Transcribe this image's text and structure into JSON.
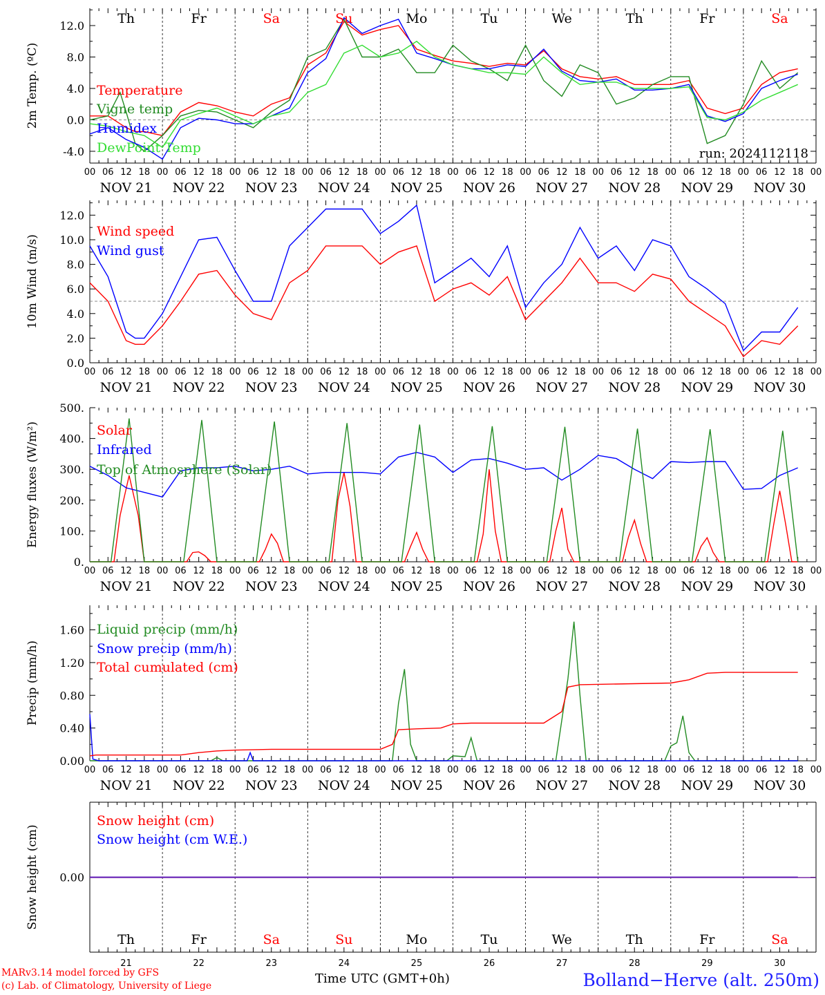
{
  "weekdays": [
    {
      "name": "Th",
      "color": "#000000"
    },
    {
      "name": "Fr",
      "color": "#000000"
    },
    {
      "name": "Sa",
      "color": "#ff0000"
    },
    {
      "name": "Su",
      "color": "#ff0000"
    },
    {
      "name": "Mo",
      "color": "#000000"
    },
    {
      "name": "Tu",
      "color": "#000000"
    },
    {
      "name": "We",
      "color": "#000000"
    },
    {
      "name": "Th",
      "color": "#000000"
    },
    {
      "name": "Fr",
      "color": "#000000"
    },
    {
      "name": "Sa",
      "color": "#ff0000"
    }
  ],
  "dates": [
    "NOV 21",
    "NOV 22",
    "NOV 23",
    "NOV 24",
    "NOV 25",
    "NOV 26",
    "NOV 27",
    "NOV 28",
    "NOV 29",
    "NOV 30"
  ],
  "day_numbers": [
    "21",
    "22",
    "23",
    "24",
    "25",
    "26",
    "27",
    "28",
    "29",
    "30"
  ],
  "hour_ticks": [
    "00",
    "06",
    "12",
    "18"
  ],
  "final_tick": "00",
  "footer": {
    "model": "MARv3.14 model forced by GFS",
    "lab": "(c) Lab. of Climatology, University of Liege",
    "xlabel": "Time UTC (GMT+0h)",
    "station": "Bolland−Herve (alt. 250m)"
  },
  "chart_data": [
    {
      "type": "line",
      "ylabel": "2m Temp. (ºC)",
      "ylim": [
        -5.5,
        14.2
      ],
      "yticks": [
        "-4.0",
        "0.0",
        "4.0",
        "8.0",
        "12.0"
      ],
      "yticks_values": [
        -4,
        0,
        4,
        8,
        12
      ],
      "ref_line": 0,
      "run_label": "run: 2024112118",
      "x_unit": "hours since NOV 21 00 UTC",
      "series": [
        {
          "name": "Temperature",
          "color": "#ff0000",
          "x": [
            0,
            6,
            12,
            15,
            18,
            24,
            30,
            36,
            42,
            48,
            54,
            60,
            66,
            72,
            78,
            84,
            90,
            96,
            102,
            108,
            114,
            120,
            126,
            132,
            138,
            144,
            150,
            156,
            162,
            168,
            174,
            180,
            186,
            192,
            198,
            204,
            210,
            216,
            222,
            228,
            234
          ],
          "y": [
            0.5,
            0.5,
            -1.0,
            -1.5,
            -1.5,
            -2.0,
            1.0,
            2.2,
            1.8,
            1.0,
            0.5,
            2.0,
            2.8,
            7.0,
            8.5,
            12.5,
            10.8,
            11.5,
            12.0,
            9.0,
            8.2,
            7.5,
            7.2,
            6.8,
            7.2,
            7.0,
            8.8,
            6.5,
            5.5,
            5.2,
            5.5,
            4.5,
            4.5,
            4.5,
            5.0,
            1.5,
            0.8,
            1.5,
            4.5,
            6.0,
            6.5
          ]
        },
        {
          "name": "Vigne temp",
          "color": "#228b22",
          "x": [
            0,
            6,
            10,
            12,
            15,
            18,
            24,
            30,
            36,
            42,
            48,
            54,
            60,
            66,
            72,
            78,
            84,
            90,
            96,
            102,
            108,
            114,
            120,
            126,
            132,
            138,
            144,
            150,
            156,
            162,
            168,
            174,
            180,
            186,
            192,
            198,
            204,
            210,
            216,
            222,
            228,
            234
          ],
          "y": [
            0.0,
            0.5,
            3.5,
            1.0,
            -3.0,
            -4.0,
            -2.0,
            0.5,
            1.2,
            1.0,
            0.0,
            -1.0,
            1.0,
            2.5,
            8.0,
            9.0,
            12.8,
            8.0,
            8.0,
            9.0,
            6.0,
            6.0,
            9.5,
            7.5,
            6.5,
            5.0,
            9.5,
            5.0,
            3.0,
            7.0,
            6.0,
            2.0,
            2.8,
            4.5,
            5.5,
            5.5,
            -3.0,
            -2.0,
            2.0,
            7.5,
            4.0,
            6.0
          ]
        },
        {
          "name": "Humidex",
          "color": "#0000ff",
          "x": [
            0,
            6,
            12,
            15,
            18,
            24,
            30,
            36,
            42,
            48,
            54,
            60,
            66,
            72,
            78,
            84,
            90,
            96,
            102,
            108,
            114,
            120,
            126,
            132,
            138,
            144,
            150,
            156,
            162,
            168,
            174,
            180,
            186,
            192,
            198,
            204,
            210,
            216,
            222,
            228,
            234
          ],
          "y": [
            -1.8,
            -1.0,
            -2.5,
            -3.0,
            -3.5,
            -5.0,
            -1.0,
            0.2,
            0.0,
            -0.5,
            -0.5,
            0.5,
            1.5,
            6.0,
            7.8,
            13.0,
            11.0,
            12.0,
            12.8,
            8.5,
            7.8,
            7.0,
            6.5,
            6.5,
            7.0,
            6.8,
            9.0,
            6.2,
            5.0,
            4.8,
            5.2,
            3.8,
            3.8,
            4.0,
            4.5,
            0.5,
            -0.2,
            0.8,
            4.0,
            5.0,
            5.8
          ]
        },
        {
          "name": "DewPoint Temp",
          "color": "#33dd33",
          "x": [
            0,
            6,
            12,
            18,
            24,
            30,
            36,
            42,
            48,
            54,
            60,
            66,
            72,
            78,
            84,
            90,
            96,
            102,
            108,
            114,
            120,
            126,
            132,
            138,
            144,
            150,
            156,
            162,
            168,
            174,
            180,
            186,
            192,
            198,
            204,
            210,
            216,
            222,
            228,
            234
          ],
          "y": [
            -0.5,
            -0.8,
            -1.5,
            -2.0,
            -3.5,
            0.0,
            0.8,
            1.5,
            0.5,
            -0.5,
            0.5,
            1.0,
            3.5,
            4.5,
            8.5,
            9.5,
            8.0,
            8.5,
            10.0,
            8.0,
            7.0,
            6.5,
            6.0,
            6.0,
            5.8,
            8.0,
            6.0,
            4.5,
            4.8,
            4.8,
            4.0,
            4.0,
            4.0,
            4.2,
            0.3,
            0.0,
            1.0,
            2.5,
            3.5,
            4.5
          ]
        }
      ]
    },
    {
      "type": "line",
      "ylabel": "10m Wind (m/s)",
      "ylim": [
        0,
        13.2
      ],
      "yticks": [
        "0.0",
        "2.0",
        "4.0",
        "6.0",
        "8.0",
        "10.0",
        "12.0"
      ],
      "yticks_values": [
        0,
        2,
        4,
        6,
        8,
        10,
        12
      ],
      "ref_line": 5,
      "x_unit": "hours since NOV 21 00 UTC",
      "series": [
        {
          "name": "Wind speed",
          "color": "#ff0000",
          "x": [
            0,
            6,
            12,
            15,
            18,
            24,
            30,
            36,
            42,
            48,
            54,
            60,
            66,
            72,
            78,
            84,
            90,
            96,
            102,
            108,
            114,
            120,
            126,
            132,
            138,
            144,
            150,
            156,
            162,
            168,
            174,
            180,
            186,
            192,
            198,
            204,
            210,
            216,
            222,
            228,
            234
          ],
          "y": [
            6.5,
            5.0,
            1.8,
            1.5,
            1.5,
            3.0,
            5.0,
            7.2,
            7.5,
            5.5,
            4.0,
            3.5,
            6.5,
            7.5,
            9.5,
            9.5,
            9.5,
            8.0,
            9.0,
            9.5,
            5.0,
            6.0,
            6.5,
            5.5,
            7.0,
            3.5,
            5.0,
            6.5,
            8.5,
            6.5,
            6.5,
            5.8,
            7.2,
            6.8,
            5.0,
            4.0,
            3.0,
            0.5,
            1.8,
            1.5,
            3.0
          ]
        },
        {
          "name": "Wind gust",
          "color": "#0000ff",
          "x": [
            0,
            6,
            12,
            15,
            18,
            24,
            30,
            36,
            42,
            48,
            54,
            60,
            66,
            72,
            78,
            84,
            90,
            96,
            102,
            108,
            114,
            120,
            126,
            132,
            138,
            144,
            150,
            156,
            162,
            168,
            174,
            180,
            186,
            192,
            198,
            204,
            210,
            216,
            222,
            228,
            234
          ],
          "y": [
            9.5,
            7.0,
            2.5,
            2.0,
            2.0,
            4.0,
            7.0,
            10.0,
            10.2,
            7.5,
            5.0,
            5.0,
            9.5,
            11.0,
            12.5,
            12.5,
            12.5,
            10.5,
            11.5,
            12.8,
            6.5,
            7.5,
            8.5,
            7.0,
            9.5,
            4.5,
            6.5,
            8.0,
            11.0,
            8.5,
            9.5,
            7.5,
            10.0,
            9.5,
            7.0,
            6.0,
            4.8,
            1.0,
            2.5,
            2.5,
            4.5
          ]
        }
      ]
    },
    {
      "type": "line",
      "ylabel": "Energy fluxes (W/m²)",
      "ylim": [
        0,
        500
      ],
      "yticks": [
        "0.",
        "100.",
        "200.",
        "300.",
        "400.",
        "500."
      ],
      "yticks_values": [
        0,
        100,
        200,
        300,
        400,
        500
      ],
      "x_unit": "hours since NOV 21 00 UTC",
      "series": [
        {
          "name": "Solar",
          "color": "#ff0000",
          "x": [
            0,
            8,
            10,
            13,
            16,
            18,
            32,
            34,
            36,
            38,
            40,
            56,
            58,
            60,
            62,
            64,
            80,
            82,
            84,
            86,
            88,
            104,
            106,
            108,
            110,
            112,
            128,
            130,
            132,
            134,
            136,
            152,
            154,
            156,
            158,
            160,
            176,
            178,
            180,
            182,
            184,
            200,
            202,
            204,
            206,
            208,
            224,
            226,
            228,
            230,
            232,
            234
          ],
          "y": [
            0,
            0,
            150,
            280,
            150,
            0,
            0,
            30,
            32,
            20,
            0,
            0,
            40,
            90,
            60,
            0,
            0,
            200,
            290,
            180,
            0,
            0,
            50,
            95,
            40,
            0,
            0,
            90,
            300,
            100,
            0,
            0,
            100,
            175,
            40,
            0,
            0,
            80,
            135,
            60,
            0,
            0,
            50,
            78,
            30,
            0,
            0,
            120,
            230,
            120,
            0,
            0
          ]
        },
        {
          "name": "Infrared",
          "color": "#0000ff",
          "x": [
            0,
            6,
            12,
            18,
            24,
            30,
            36,
            42,
            48,
            54,
            60,
            66,
            72,
            78,
            84,
            90,
            96,
            102,
            108,
            114,
            120,
            126,
            132,
            138,
            144,
            150,
            156,
            162,
            168,
            174,
            180,
            186,
            192,
            198,
            204,
            210,
            216,
            222,
            228,
            234
          ],
          "y": [
            310,
            280,
            240,
            225,
            210,
            295,
            305,
            305,
            310,
            295,
            300,
            310,
            285,
            290,
            290,
            290,
            285,
            340,
            355,
            340,
            290,
            330,
            335,
            320,
            300,
            305,
            265,
            300,
            345,
            335,
            300,
            270,
            325,
            322,
            325,
            325,
            235,
            238,
            280,
            305
          ]
        },
        {
          "name": "Top of Atmosphere (Solar)",
          "color": "#228b22",
          "x": [
            0,
            7,
            13,
            18,
            24,
            31,
            37,
            42,
            48,
            55,
            61,
            66,
            72,
            79,
            85,
            90,
            96,
            103,
            109,
            114,
            120,
            127,
            133,
            138,
            144,
            151,
            157,
            162,
            168,
            175,
            181,
            186,
            192,
            199,
            205,
            210,
            216,
            223,
            229,
            234
          ],
          "y": [
            0,
            0,
            465,
            0,
            0,
            0,
            460,
            0,
            0,
            0,
            455,
            0,
            0,
            0,
            450,
            0,
            0,
            0,
            445,
            0,
            0,
            0,
            440,
            0,
            0,
            0,
            438,
            0,
            0,
            0,
            432,
            0,
            0,
            0,
            430,
            0,
            0,
            0,
            425,
            0
          ]
        }
      ]
    },
    {
      "type": "line",
      "ylabel": "Precip (mm/h)",
      "ylim": [
        0,
        1.9
      ],
      "yticks": [
        "0.00",
        "0.40",
        "0.80",
        "1.20",
        "1.60"
      ],
      "yticks_values": [
        0,
        0.4,
        0.8,
        1.2,
        1.6
      ],
      "x_unit": "hours since NOV 21 00 UTC",
      "series": [
        {
          "name": "Liquid precip (mm/h)",
          "color": "#228b22",
          "x": [
            0,
            40,
            42,
            44,
            100,
            102,
            104,
            106,
            108,
            112,
            118,
            120,
            124,
            126,
            128,
            140,
            154,
            158,
            160,
            162,
            164,
            168,
            190,
            192,
            194,
            196,
            198,
            200,
            234
          ],
          "y": [
            0,
            0,
            0.04,
            0,
            0,
            0.7,
            1.12,
            0.2,
            0,
            0,
            0,
            0.06,
            0.05,
            0.28,
            0,
            0,
            0,
            1.0,
            1.7,
            0.8,
            0,
            0,
            0,
            0.18,
            0.22,
            0.55,
            0.1,
            0,
            0
          ]
        },
        {
          "name": "Snow precip (mm/h)",
          "color": "#0000ff",
          "x": [
            0,
            1,
            3,
            52,
            53,
            54,
            234
          ],
          "y": [
            0.57,
            0.02,
            0,
            0,
            0.1,
            0,
            0
          ]
        },
        {
          "name": "Total cumulated (cm)",
          "color": "#ff0000",
          "x": [
            0,
            2,
            30,
            36,
            42,
            48,
            60,
            96,
            100,
            102,
            108,
            116,
            120,
            126,
            132,
            150,
            156,
            158,
            162,
            192,
            198,
            204,
            210,
            234
          ],
          "y": [
            0.06,
            0.07,
            0.07,
            0.1,
            0.12,
            0.13,
            0.14,
            0.14,
            0.2,
            0.38,
            0.39,
            0.4,
            0.45,
            0.46,
            0.46,
            0.46,
            0.6,
            0.9,
            0.93,
            0.95,
            0.99,
            1.07,
            1.08,
            1.08
          ]
        }
      ]
    },
    {
      "type": "line",
      "ylabel": "Snow height (cm)",
      "ylim": [
        -1,
        1
      ],
      "yticks": [
        "0.00"
      ],
      "yticks_values": [
        0
      ],
      "x_unit": "hours since NOV 21 00 UTC",
      "series": [
        {
          "name": "Snow height (cm)",
          "color": "#ff0000",
          "x": [
            0,
            234
          ],
          "y": [
            0,
            0
          ]
        },
        {
          "name": "Snow height (cm W.E.)",
          "color": "#0000ff",
          "x": [
            0,
            234
          ],
          "y": [
            0,
            0
          ]
        }
      ]
    }
  ]
}
